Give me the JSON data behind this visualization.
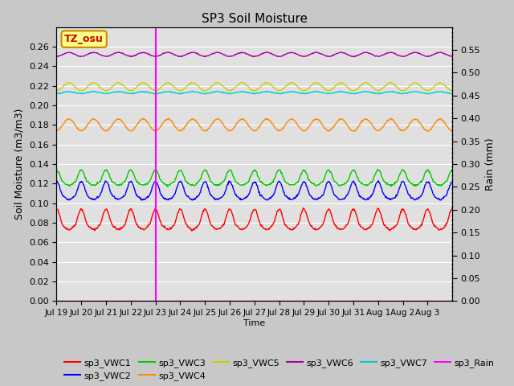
{
  "title": "SP3 Soil Moisture",
  "ylabel_left": "Soil Moisture (m3/m3)",
  "ylabel_right": "Rain (mm)",
  "xlabel": "Time",
  "tz_label": "TZ_osu",
  "ylim_left": [
    0.0,
    0.28
  ],
  "ylim_right": [
    0.0,
    0.6
  ],
  "yticks_left": [
    0.0,
    0.02,
    0.04,
    0.06,
    0.08,
    0.1,
    0.12,
    0.14,
    0.16,
    0.18,
    0.2,
    0.22,
    0.24,
    0.26
  ],
  "yticks_right": [
    0.0,
    0.05,
    0.1,
    0.15,
    0.2,
    0.25,
    0.3,
    0.35,
    0.4,
    0.45,
    0.5,
    0.55
  ],
  "xtick_labels": [
    "Jul 19",
    "Jul 20",
    "Jul 21",
    "Jul 22",
    "Jul 23",
    "Jul 24",
    "Jul 25",
    "Jul 26",
    "Jul 27",
    "Jul 28",
    "Jul 29",
    "Jul 30",
    "Jul 31",
    "Aug 1",
    "Aug 2",
    "Aug 3"
  ],
  "vline_day": 4,
  "vline_color": "#FF00FF",
  "series_order": [
    "sp3_VWC1",
    "sp3_VWC2",
    "sp3_VWC3",
    "sp3_VWC4",
    "sp3_VWC5",
    "sp3_VWC6",
    "sp3_VWC7"
  ],
  "colors": {
    "sp3_VWC1": "#FF0000",
    "sp3_VWC2": "#0000FF",
    "sp3_VWC3": "#00CC00",
    "sp3_VWC4": "#FF8800",
    "sp3_VWC5": "#CCCC00",
    "sp3_VWC6": "#AA00AA",
    "sp3_VWC7": "#00CCCC",
    "sp3_Rain": "#FF00FF"
  },
  "base_values": {
    "sp3_VWC1": 0.078,
    "sp3_VWC2": 0.108,
    "sp3_VWC3": 0.122,
    "sp3_VWC4": 0.18,
    "sp3_VWC5": 0.219,
    "sp3_VWC6": 0.252,
    "sp3_VWC7": 0.213
  },
  "amplitudes": {
    "sp3_VWC1": 0.016,
    "sp3_VWC2": 0.014,
    "sp3_VWC3": 0.012,
    "sp3_VWC4": 0.006,
    "sp3_VWC5": 0.004,
    "sp3_VWC6": 0.002,
    "sp3_VWC7": 0.001
  },
  "background_color": "#C8C8C8",
  "plot_bg_color": "#E0E0E0",
  "grid_color": "#FFFFFF",
  "legend_row1": [
    "sp3_VWC1",
    "sp3_VWC2",
    "sp3_VWC3",
    "sp3_VWC4",
    "sp3_VWC5",
    "sp3_VWC6"
  ],
  "legend_row2": [
    "sp3_VWC7",
    "sp3_Rain"
  ]
}
